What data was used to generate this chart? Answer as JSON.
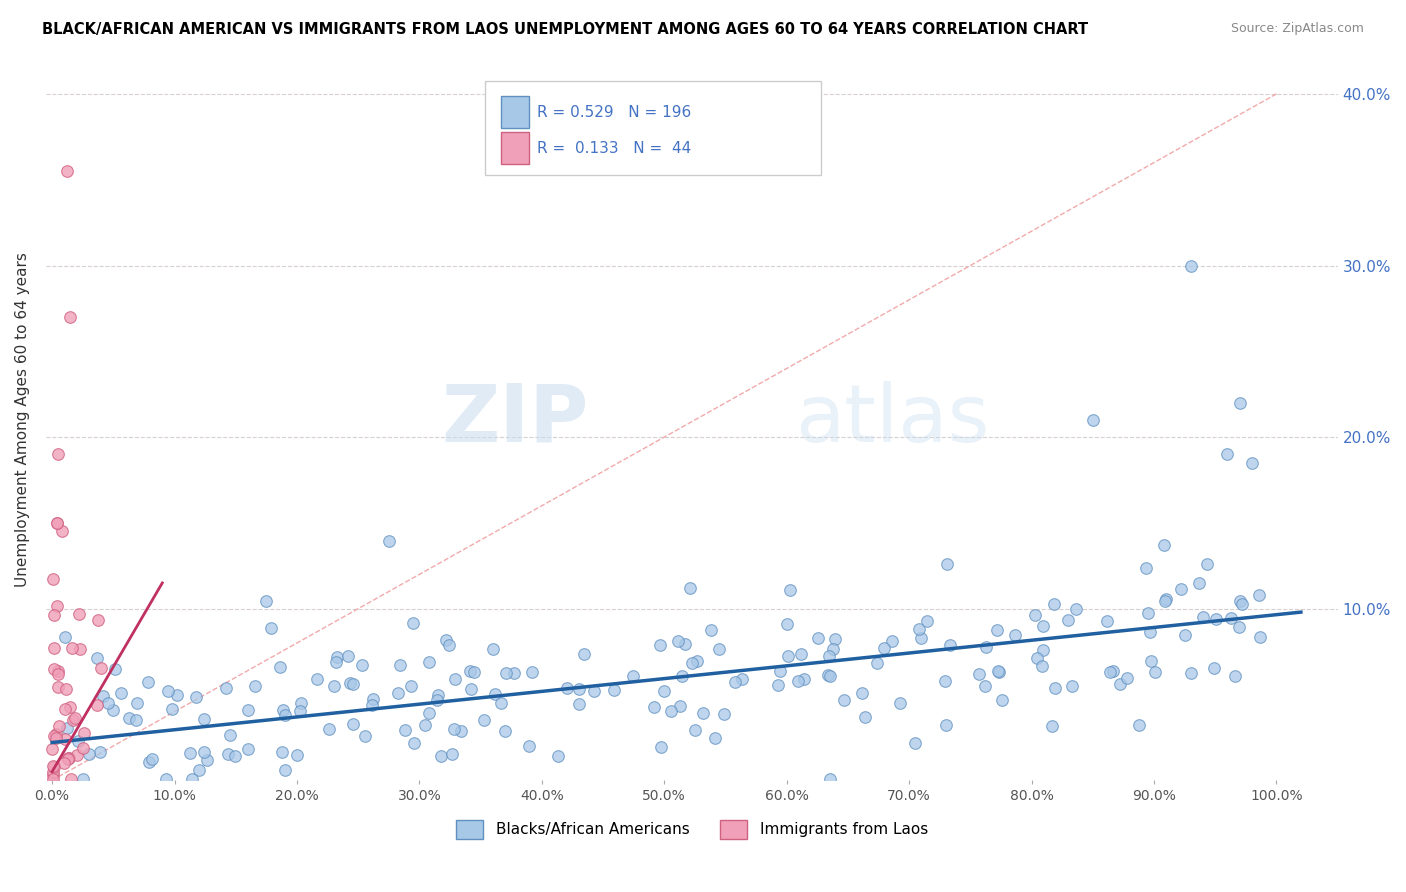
{
  "title": "BLACK/AFRICAN AMERICAN VS IMMIGRANTS FROM LAOS UNEMPLOYMENT AMONG AGES 60 TO 64 YEARS CORRELATION CHART",
  "source": "Source: ZipAtlas.com",
  "ylabel": "Unemployment Among Ages 60 to 64 years",
  "ylim": [
    0,
    0.42
  ],
  "xlim": [
    -0.005,
    1.05
  ],
  "blue_R": 0.529,
  "blue_N": 196,
  "pink_R": 0.133,
  "pink_N": 44,
  "blue_dot_color": "#A8C8E8",
  "blue_dot_edge": "#6090C0",
  "pink_dot_color": "#F0A0B8",
  "pink_dot_edge": "#D06080",
  "blue_line_color": "#2060A0",
  "pink_line_color": "#C03060",
  "ref_line_color": "#F0A0A0",
  "ytick_color": "#4472C4",
  "watermark_zip": "ZIP",
  "watermark_atlas": "atlas",
  "legend_label_blue": "Blacks/African Americans",
  "legend_label_pink": "Immigrants from Laos",
  "blue_trend_x0": 0.0,
  "blue_trend_y0": 0.022,
  "blue_trend_x1": 1.02,
  "blue_trend_y1": 0.098,
  "pink_trend_x0": 0.0,
  "pink_trend_y0": 0.005,
  "pink_trend_x1": 0.09,
  "pink_trend_y1": 0.115
}
